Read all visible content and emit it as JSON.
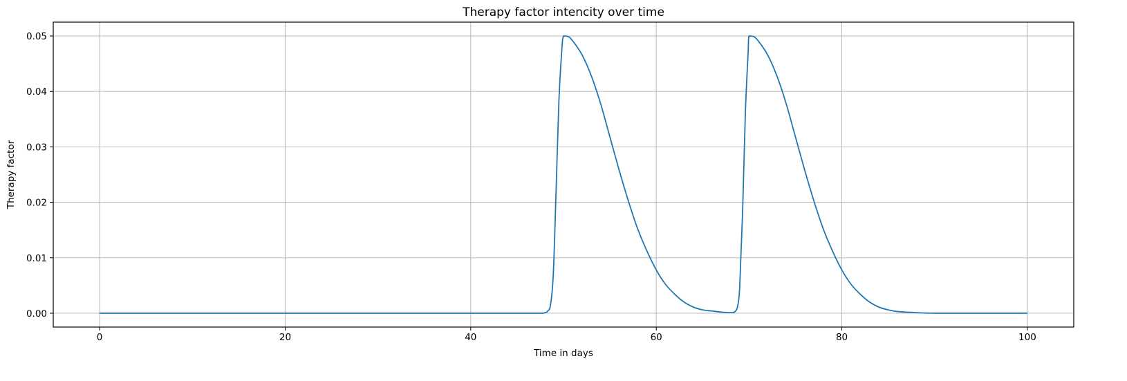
{
  "chart_data": {
    "type": "line",
    "title": "Therapy factor intencity over time",
    "xlabel": "Time in days",
    "ylabel": "Therapy factor",
    "xlim": [
      -5,
      105
    ],
    "ylim": [
      -0.0025,
      0.0525
    ],
    "xticks": [
      0,
      20,
      40,
      60,
      80,
      100
    ],
    "xtick_labels": [
      "0",
      "20",
      "40",
      "60",
      "80",
      "100"
    ],
    "yticks": [
      0.0,
      0.01,
      0.02,
      0.03,
      0.04,
      0.05
    ],
    "ytick_labels": [
      "0.00",
      "0.01",
      "0.02",
      "0.03",
      "0.04",
      "0.05"
    ],
    "grid": true,
    "legend": "none",
    "series": [
      {
        "color": "#1f77b4",
        "x": [
          0,
          10,
          20,
          30,
          40,
          47,
          48,
          48.3,
          48.6,
          48.9,
          49.2,
          49.5,
          49.8,
          50,
          50.5,
          51,
          52,
          53,
          54,
          55,
          56,
          57,
          58,
          59,
          60,
          61,
          62,
          63,
          64,
          65,
          66,
          67,
          68,
          68.5,
          68.8,
          69,
          69.3,
          69.6,
          69.9,
          70,
          70.5,
          71,
          72,
          73,
          74,
          75,
          76,
          77,
          78,
          79,
          80,
          81,
          82,
          83,
          84,
          85,
          86,
          88,
          90,
          95,
          100
        ],
        "y": [
          0,
          0,
          0,
          0,
          0,
          0,
          0.0001,
          0.0004,
          0.0015,
          0.007,
          0.022,
          0.038,
          0.047,
          0.05,
          0.0499,
          0.0491,
          0.0466,
          0.0428,
          0.0378,
          0.0318,
          0.0258,
          0.0202,
          0.0152,
          0.0112,
          0.0078,
          0.0052,
          0.0034,
          0.002,
          0.0011,
          0.0006,
          0.0004,
          0.0002,
          0.0001,
          0.0003,
          0.0015,
          0.005,
          0.018,
          0.036,
          0.047,
          0.05,
          0.0499,
          0.0491,
          0.0466,
          0.0428,
          0.0378,
          0.0318,
          0.0258,
          0.0202,
          0.0152,
          0.0112,
          0.0078,
          0.0052,
          0.0034,
          0.002,
          0.0011,
          0.0006,
          0.0003,
          0.0001,
          0,
          0,
          0
        ]
      }
    ]
  }
}
